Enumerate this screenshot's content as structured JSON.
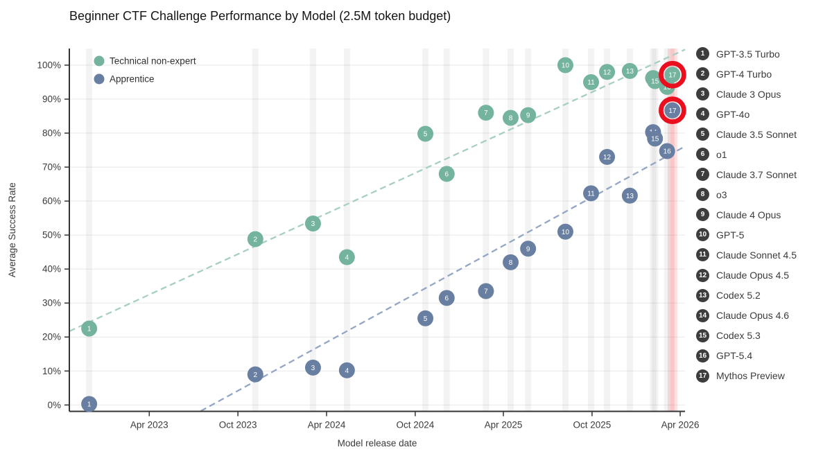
{
  "title": "Beginner CTF Challenge Performance by Model (2.5M token budget)",
  "chart_data": {
    "type": "scatter",
    "title": "Beginner CTF Challenge Performance by Model (2.5M token budget)",
    "xlabel": "Model release date",
    "ylabel": "Average Success Rate",
    "y_ticks": [
      "0%",
      "10%",
      "20%",
      "30%",
      "40%",
      "50%",
      "60%",
      "70%",
      "80%",
      "90%",
      "100%"
    ],
    "y_tick_values": [
      0,
      10,
      20,
      30,
      40,
      50,
      60,
      70,
      80,
      90,
      100
    ],
    "x_ticks": [
      {
        "label": "Apr 2023",
        "date": "2023-04-01"
      },
      {
        "label": "Oct 2023",
        "date": "2023-10-01"
      },
      {
        "label": "Apr 2024",
        "date": "2024-04-01"
      },
      {
        "label": "Oct 2024",
        "date": "2024-10-01"
      },
      {
        "label": "Apr 2025",
        "date": "2025-04-01"
      },
      {
        "label": "Oct 2025",
        "date": "2025-10-01"
      },
      {
        "label": "Apr 2026",
        "date": "2026-04-01"
      }
    ],
    "x_range": [
      "2022-10-18",
      "2026-04-11"
    ],
    "y_range": [
      -2,
      107
    ],
    "grid": "horizontal",
    "series": [
      {
        "name": "Technical non-expert",
        "key": "technical_non_expert",
        "color": "#74b39e"
      },
      {
        "name": "Apprentice",
        "key": "apprentice",
        "color": "#687fa2"
      }
    ],
    "models": [
      {
        "num": 1,
        "label": "GPT-3.5 Turbo",
        "date": "2022-11-28",
        "technical_non_expert": 22.5,
        "apprentice": 0.3
      },
      {
        "num": 2,
        "label": "GPT-4 Turbo",
        "date": "2023-11-06",
        "technical_non_expert": 48.8,
        "apprentice": 9.0
      },
      {
        "num": 3,
        "label": "Claude 3 Opus",
        "date": "2024-03-04",
        "technical_non_expert": 53.4,
        "apprentice": 11.0
      },
      {
        "num": 4,
        "label": "GPT-4o",
        "date": "2024-05-13",
        "technical_non_expert": 43.5,
        "apprentice": 10.2
      },
      {
        "num": 5,
        "label": "Claude 3.5 Sonnet",
        "date": "2024-10-22",
        "technical_non_expert": 79.8,
        "apprentice": 25.5
      },
      {
        "num": 6,
        "label": "o1",
        "date": "2024-12-05",
        "technical_non_expert": 68.0,
        "apprentice": 31.5
      },
      {
        "num": 7,
        "label": "Claude 3.7 Sonnet",
        "date": "2025-02-24",
        "technical_non_expert": 86.0,
        "apprentice": 33.5
      },
      {
        "num": 8,
        "label": "o3",
        "date": "2025-04-16",
        "technical_non_expert": 84.5,
        "apprentice": 42.0
      },
      {
        "num": 9,
        "label": "Claude 4 Opus",
        "date": "2025-05-22",
        "technical_non_expert": 85.3,
        "apprentice": 46.0
      },
      {
        "num": 10,
        "label": "GPT-5",
        "date": "2025-08-07",
        "technical_non_expert": 100.0,
        "apprentice": 51.0
      },
      {
        "num": 11,
        "label": "Claude Sonnet 4.5",
        "date": "2025-09-29",
        "technical_non_expert": 95.0,
        "apprentice": 62.3
      },
      {
        "num": 12,
        "label": "Claude Opus 4.5",
        "date": "2025-11-01",
        "technical_non_expert": 98.0,
        "apprentice": 73.0
      },
      {
        "num": 13,
        "label": "Codex 5.2",
        "date": "2025-12-18",
        "technical_non_expert": 98.3,
        "apprentice": 61.6
      },
      {
        "num": 14,
        "label": "Claude Opus 4.6",
        "date": "2026-02-04",
        "technical_non_expert": 96.2,
        "apprentice": 80.3
      },
      {
        "num": 15,
        "label": "Codex 5.3",
        "date": "2026-02-08",
        "technical_non_expert": 95.3,
        "apprentice": 78.4
      },
      {
        "num": 16,
        "label": "GPT-5.4",
        "date": "2026-03-05",
        "technical_non_expert": 93.6,
        "apprentice": 74.7
      },
      {
        "num": 17,
        "label": "Mythos Preview",
        "date": "2026-03-16",
        "technical_non_expert": 97.2,
        "apprentice": 86.7,
        "highlighted": true
      }
    ],
    "trendlines": [
      {
        "series": "Technical non-expert",
        "color": "#a6cfc0",
        "from": {
          "date": "2022-10-18",
          "value": 21.7
        },
        "to": {
          "date": "2026-04-11",
          "value": 104.6
        }
      },
      {
        "series": "Apprentice",
        "color": "#93a6c3",
        "from": {
          "date": "2023-07-16",
          "value": -1.8
        },
        "to": {
          "date": "2026-04-11",
          "value": 76.1
        }
      }
    ],
    "annotations": {
      "circled_model_num": 17,
      "circle_color": "#e90f1e",
      "highlight_band_color": "rgba(235,70,70,0.16)",
      "release_band_color": "rgba(125,125,125,0.09)"
    },
    "legend_position": "top-left"
  },
  "colors": {
    "grid": "#e8e8e8",
    "spine": "#333333",
    "tick_text": "#3a3a3a",
    "badge": "#3d3d3d",
    "marker_number": "#ffffff"
  }
}
